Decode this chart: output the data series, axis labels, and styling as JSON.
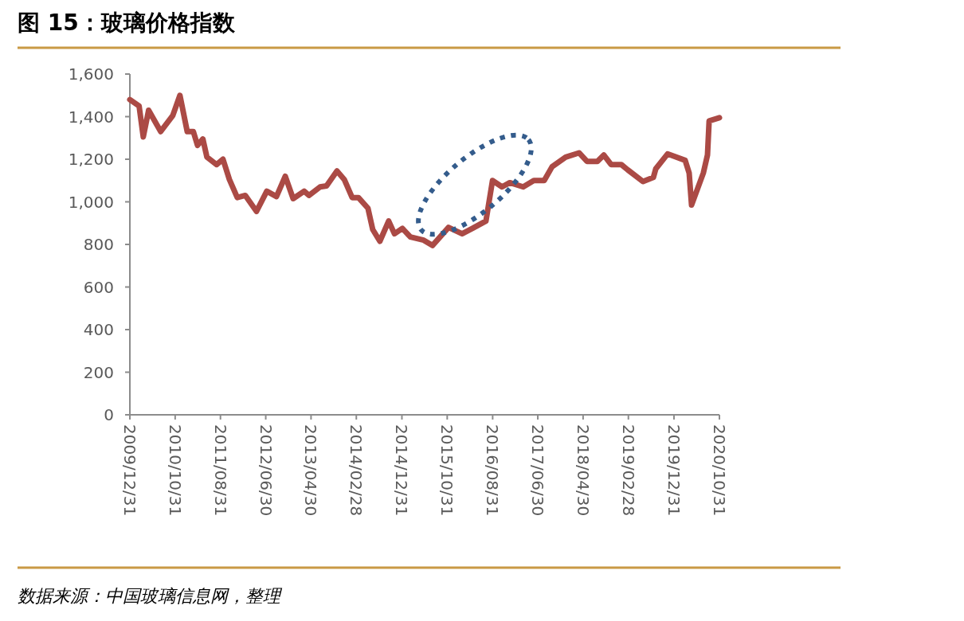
{
  "chart_data": {
    "type": "line",
    "title": "图 15：玻璃价格指数",
    "annotations": [
      "数据来源：中国玻璃信息网，整理"
    ],
    "x": [
      "2009-12-31",
      "2010-03-03",
      "2010-03-31",
      "2010-05-06",
      "2010-07-26",
      "2010-10-15",
      "2010-12-02",
      "2011-01-20",
      "2011-03-02",
      "2011-03-30",
      "2011-05-05",
      "2011-06-01",
      "2011-08-05",
      "2011-09-17",
      "2011-10-30",
      "2011-12-22",
      "2012-02-14",
      "2012-04-29",
      "2012-07-07",
      "2012-09-10",
      "2012-11-08",
      "2012-12-31",
      "2013-03-15",
      "2013-04-16",
      "2013-06-30",
      "2013-08-12",
      "2013-10-21",
      "2013-12-09",
      "2014-01-31",
      "2014-03-14",
      "2014-05-17",
      "2014-06-18",
      "2014-08-05",
      "2014-10-03",
      "2014-11-11",
      "2015-01-03",
      "2015-02-26",
      "2015-05-26",
      "2015-07-24",
      "2015-11-09",
      "2016-02-08",
      "2016-04-17",
      "2016-07-17",
      "2016-08-30",
      "2016-11-02",
      "2016-12-24",
      "2017-03-24",
      "2017-06-03",
      "2017-08-12",
      "2017-10-04",
      "2018-01-03",
      "2018-04-03",
      "2018-05-26",
      "2018-08-04",
      "2018-09-16",
      "2018-11-04",
      "2019-01-12",
      "2019-02-24",
      "2019-06-06",
      "2019-08-15",
      "2019-08-31",
      "2019-11-18",
      "2020-03-15",
      "2020-04-11",
      "2020-04-27",
      "2020-07-15",
      "2020-08-12",
      "2020-08-23",
      "2020-10-31"
    ],
    "series": [
      {
        "color": "#ab4a45",
        "values": [
          1480,
          1450,
          1305,
          1430,
          1330,
          1405,
          1500,
          1330,
          1330,
          1265,
          1295,
          1210,
          1175,
          1200,
          1105,
          1020,
          1030,
          955,
          1050,
          1025,
          1120,
          1015,
          1050,
          1030,
          1070,
          1075,
          1145,
          1105,
          1020,
          1020,
          970,
          870,
          815,
          910,
          850,
          875,
          835,
          820,
          795,
          880,
          850,
          875,
          910,
          1100,
          1070,
          1090,
          1070,
          1100,
          1100,
          1165,
          1210,
          1230,
          1190,
          1190,
          1220,
          1175,
          1175,
          1150,
          1095,
          1115,
          1155,
          1225,
          1195,
          1135,
          985,
          1135,
          1220,
          1380,
          1395
        ]
      }
    ],
    "xlim": [
      "2009-12-31",
      "2020-10-31"
    ],
    "xticks": [
      {
        "value": "2009-12-31",
        "label": "2009/12/31"
      },
      {
        "value": "2010-10-31",
        "label": "2010/10/31"
      },
      {
        "value": "2011-08-31",
        "label": "2011/08/31"
      },
      {
        "value": "2012-06-30",
        "label": "2012/06/30"
      },
      {
        "value": "2013-04-30",
        "label": "2013/04/30"
      },
      {
        "value": "2014-02-28",
        "label": "2014/02/28"
      },
      {
        "value": "2014-12-31",
        "label": "2014/12/31"
      },
      {
        "value": "2015-10-31",
        "label": "2015/10/31"
      },
      {
        "value": "2016-08-31",
        "label": "2016/08/31"
      },
      {
        "value": "2017-06-30",
        "label": "2017/06/30"
      },
      {
        "value": "2018-04-30",
        "label": "2018/04/30"
      },
      {
        "value": "2019-02-28",
        "label": "2019/02/28"
      },
      {
        "value": "2019-12-31",
        "label": "2019/12/31"
      },
      {
        "value": "2020-10-31",
        "label": "2020/10/31"
      }
    ],
    "ylim": [
      0,
      1600
    ],
    "yticks": [
      0,
      200,
      400,
      600,
      800,
      {
        "value": 1000,
        "label": "1,000"
      },
      {
        "value": 1200,
        "label": "1,200"
      },
      {
        "value": 1400,
        "label": "1,400"
      },
      {
        "value": 1600,
        "label": "1,600"
      }
    ],
    "line_style": "solid",
    "marker": "none"
  }
}
